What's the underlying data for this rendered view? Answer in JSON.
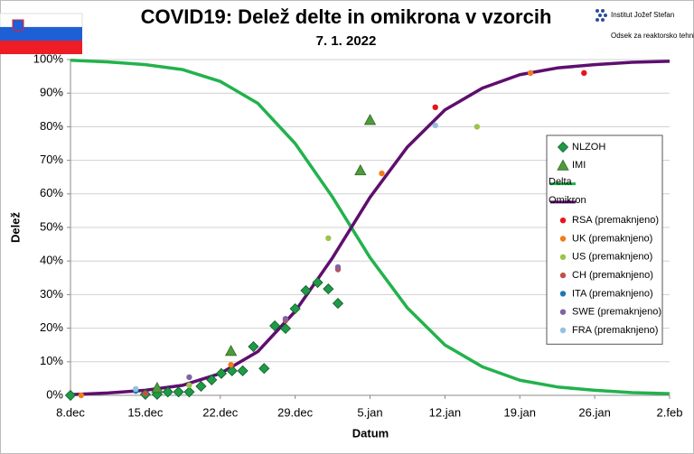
{
  "chart_data": {
    "type": "scatter",
    "title": "COVID19: Delež delte in omikrona v vzorcih",
    "subtitle": "7. 1. 2022",
    "annotations": [
      "Institut Jožef Stefan",
      "Odsek za reaktorsko tehniko"
    ],
    "x_label": "Datum",
    "y_label": "Delež",
    "xlim": [
      0,
      56
    ],
    "xticks": [
      {
        "value": 0,
        "label": "8.dec"
      },
      {
        "value": 7,
        "label": "15.dec"
      },
      {
        "value": 14,
        "label": "22.dec"
      },
      {
        "value": 21,
        "label": "29.dec"
      },
      {
        "value": 28,
        "label": "5.jan"
      },
      {
        "value": 35,
        "label": "12.jan"
      },
      {
        "value": 42,
        "label": "19.jan"
      },
      {
        "value": 49,
        "label": "26.jan"
      },
      {
        "value": 56,
        "label": "2.feb"
      }
    ],
    "ylim": [
      0,
      100
    ],
    "yticks": [
      {
        "value": 0,
        "label": "0%"
      },
      {
        "value": 10,
        "label": "10%"
      },
      {
        "value": 20,
        "label": "20%"
      },
      {
        "value": 30,
        "label": "30%"
      },
      {
        "value": 40,
        "label": "40%"
      },
      {
        "value": 50,
        "label": "50%"
      },
      {
        "value": 60,
        "label": "60%"
      },
      {
        "value": 70,
        "label": "70%"
      },
      {
        "value": 80,
        "label": "80%"
      },
      {
        "value": 90,
        "label": "90%"
      },
      {
        "value": 100,
        "label": "100%"
      }
    ],
    "grid": true,
    "legend": "right",
    "series": [
      {
        "name": "NLZOH",
        "marker": "diamond",
        "color": "#1f9a48",
        "x": [
          0,
          7,
          8.1,
          9.1,
          10.1,
          11.1,
          12.2,
          13.2,
          14.1,
          15.1,
          16.1,
          17.1,
          18.1,
          19.1,
          20.1,
          21,
          22,
          23.1,
          24.1,
          25
        ],
        "values": [
          0,
          0.3,
          0.3,
          1,
          1,
          1,
          2.7,
          4.6,
          6.5,
          7.3,
          7.3,
          14.5,
          8,
          20.7,
          19.9,
          25.8,
          31.2,
          33.6,
          31.7,
          27.4
        ]
      },
      {
        "name": "IMI",
        "marker": "triangle",
        "color": "#4e9a3c",
        "x": [
          8.1,
          15,
          27.1,
          28
        ],
        "values": [
          2.2,
          13.2,
          67,
          82
        ]
      },
      {
        "name": "Delta",
        "marker": "line",
        "color": "#22b24c",
        "x": [
          0,
          3.5,
          7,
          10.5,
          14,
          17.5,
          21,
          24.5,
          28,
          31.5,
          35,
          38.5,
          42,
          45.5,
          49,
          52.5,
          56
        ],
        "values": [
          99.8,
          99.3,
          98.5,
          97,
          93.5,
          87,
          75,
          59,
          41,
          26,
          15,
          8.5,
          4.5,
          2.5,
          1.5,
          0.8,
          0.5
        ]
      },
      {
        "name": "Omikron",
        "marker": "line",
        "color": "#5e0f6e",
        "x": [
          0,
          3.5,
          7,
          10.5,
          14,
          17.5,
          21,
          24.5,
          28,
          31.5,
          35,
          38.5,
          42,
          45.5,
          49,
          52.5,
          56
        ],
        "values": [
          0.2,
          0.7,
          1.5,
          3,
          6.5,
          13,
          25,
          41,
          59,
          74,
          85,
          91.5,
          95.5,
          97.5,
          98.5,
          99.2,
          99.5
        ]
      },
      {
        "name": "RSA (premaknjeno)",
        "marker": "circle",
        "color": "#e8141c",
        "x": [
          34.1,
          48
        ],
        "values": [
          85.8,
          96
        ]
      },
      {
        "name": "UK (premaknjeno)",
        "marker": "circle",
        "color": "#f07d1a",
        "x": [
          1,
          15,
          29.1,
          43
        ],
        "values": [
          0,
          9.1,
          66.1,
          96
        ]
      },
      {
        "name": "US (premaknjeno)",
        "marker": "circle",
        "color": "#9bc44a",
        "x": [
          11.1,
          24.1,
          38
        ],
        "values": [
          3,
          46.8,
          80
        ]
      },
      {
        "name": "CH (premaknjeno)",
        "marker": "circle",
        "color": "#c0504d",
        "x": [
          7,
          20.1,
          25
        ],
        "values": [
          0.5,
          22.3,
          37.5
        ]
      },
      {
        "name": "ITA (premaknjeno)",
        "marker": "circle",
        "color": "#1f77b4",
        "x": [
          6.1
        ],
        "values": [
          1.3
        ]
      },
      {
        "name": "SWE (premaknjeno)",
        "marker": "circle",
        "color": "#8064a2",
        "x": [
          11.1,
          20.1,
          25
        ],
        "values": [
          5.4,
          22.8,
          38.2
        ]
      },
      {
        "name": "FRA (premaknjeno)",
        "marker": "circle",
        "color": "#93c1dd",
        "x": [
          6.1,
          34.1
        ],
        "values": [
          1.9,
          80.4
        ]
      }
    ]
  }
}
